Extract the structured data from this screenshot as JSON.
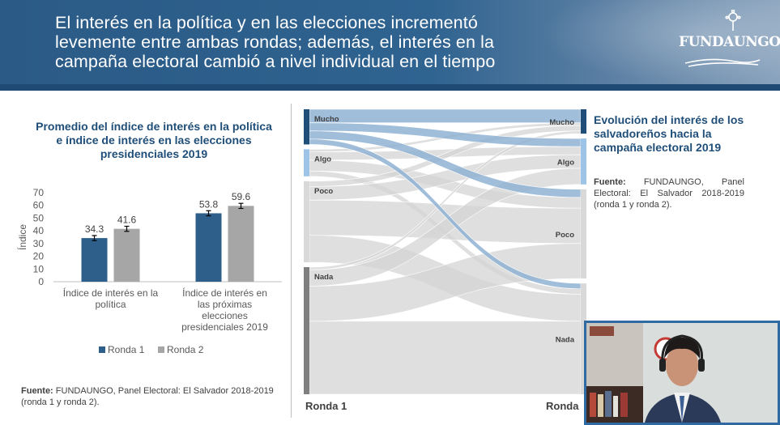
{
  "header": {
    "title": "El interés en la política y en las elecciones incrementó levemente entre ambas rondas; además, el interés en la campaña electoral cambió a nivel individual en el tiempo",
    "logo_text": "FUNDAUNGO"
  },
  "left": {
    "title": "Promedio del índice de interés en la política e índice de interés en las elecciones presidenciales 2019",
    "source_label": "Fuente:",
    "source_text": " FUNDAUNGO, Panel Electoral: El Salvador 2018-2019 (ronda 1 y ronda 2)."
  },
  "right": {
    "title": "Evolución del interés de los salvadoreños hacia la campaña electoral 2019",
    "source_label": "Fuente:",
    "source_text": " FUNDAUNGO, Panel Electoral: El Salvador 2018-2019 (ronda 1 y ronda 2)."
  },
  "colors": {
    "ronda1": "#2e5f8a",
    "ronda2": "#a6a6a6",
    "header": "#2f6390",
    "flow_blue": "#8fb3d3",
    "flow_grey": "#d4d4d4"
  },
  "chart_data": [
    {
      "type": "bar",
      "title": "Promedio del índice de interés en la política e índice de interés en las elecciones presidenciales 2019",
      "ylabel": "Índice",
      "ylim": [
        0,
        70
      ],
      "yticks": [
        "0",
        "10",
        "20",
        "30",
        "40",
        "50",
        "60",
        "70"
      ],
      "categories": [
        [
          "Índice de interés en la",
          "política"
        ],
        [
          "Índice de interés en",
          "las próximas",
          "elecciones",
          "presidenciales 2019"
        ]
      ],
      "series": [
        {
          "name": "Ronda 1",
          "values": [
            34.3,
            53.8
          ],
          "labels": [
            "34.3",
            "53.8"
          ]
        },
        {
          "name": "Ronda 2",
          "values": [
            41.6,
            59.6
          ],
          "labels": [
            "41.6",
            "59.6"
          ]
        }
      ],
      "error_bars": true,
      "legend": "bottom"
    },
    {
      "type": "sankey",
      "title": "Evolución del interés de los salvadoreños hacia la campaña electoral 2019",
      "stages": [
        "Ronda 1",
        "Ronda"
      ],
      "left_nodes": [
        {
          "name": "Mucho",
          "share": 0.13
        },
        {
          "name": "Algo",
          "share": 0.1
        },
        {
          "name": "Poco",
          "share": 0.3
        },
        {
          "name": "Nada",
          "share": 0.47
        }
      ],
      "right_nodes": [
        {
          "name": "Mucho",
          "share": 0.09
        },
        {
          "name": "Algo",
          "share": 0.17
        },
        {
          "name": "Poco",
          "share": 0.33
        },
        {
          "name": "Nada",
          "share": 0.41
        }
      ],
      "flows": [
        {
          "from": "Mucho",
          "to": "Mucho",
          "share": 0.05
        },
        {
          "from": "Mucho",
          "to": "Algo",
          "share": 0.03
        },
        {
          "from": "Mucho",
          "to": "Poco",
          "share": 0.03
        },
        {
          "from": "Mucho",
          "to": "Nada",
          "share": 0.02
        },
        {
          "from": "Algo",
          "to": "Mucho",
          "share": 0.01
        },
        {
          "from": "Algo",
          "to": "Algo",
          "share": 0.03
        },
        {
          "from": "Algo",
          "to": "Poco",
          "share": 0.04
        },
        {
          "from": "Algo",
          "to": "Nada",
          "share": 0.02
        },
        {
          "from": "Poco",
          "to": "Mucho",
          "share": 0.02
        },
        {
          "from": "Poco",
          "to": "Algo",
          "share": 0.05
        },
        {
          "from": "Poco",
          "to": "Poco",
          "share": 0.13
        },
        {
          "from": "Poco",
          "to": "Nada",
          "share": 0.1
        },
        {
          "from": "Nada",
          "to": "Mucho",
          "share": 0.01
        },
        {
          "from": "Nada",
          "to": "Algo",
          "share": 0.06
        },
        {
          "from": "Nada",
          "to": "Poco",
          "share": 0.13
        },
        {
          "from": "Nada",
          "to": "Nada",
          "share": 0.27
        }
      ]
    }
  ]
}
